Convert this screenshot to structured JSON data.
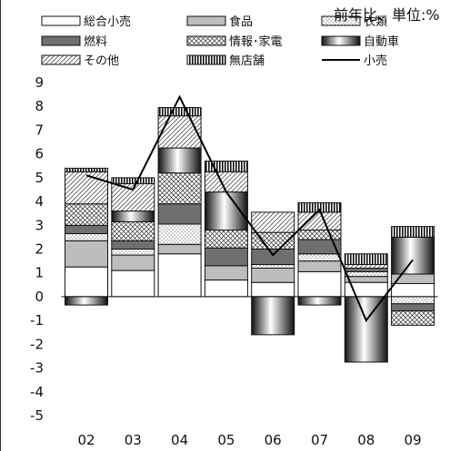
{
  "chart_data": {
    "type": "bar",
    "stacked": true,
    "unit_label": "前年比、単位:%",
    "categories": [
      "02",
      "03",
      "04",
      "05",
      "06",
      "07",
      "08",
      "09"
    ],
    "ylim": [
      -5,
      9
    ],
    "yticks": [
      9,
      8,
      7,
      6,
      5,
      4,
      3,
      2,
      1,
      0,
      -1,
      -2,
      -3,
      -4,
      -5
    ],
    "grid": false,
    "legend_position": "top",
    "series": [
      {
        "name": "総合小売",
        "pattern": "white",
        "values": [
          1.25,
          1.1,
          1.8,
          0.7,
          0.6,
          1.05,
          0.6,
          0.55
        ]
      },
      {
        "name": "食品",
        "pattern": "gray",
        "values": [
          1.1,
          0.65,
          0.4,
          0.6,
          0.6,
          0.45,
          0.25,
          0.4
        ]
      },
      {
        "name": "衣類",
        "pattern": "dots",
        "values": [
          0.3,
          0.25,
          0.85,
          0.0,
          0.15,
          0.3,
          0.2,
          -0.3
        ]
      },
      {
        "name": "燃料",
        "pattern": "dark",
        "values": [
          0.35,
          0.35,
          0.85,
          0.75,
          0.65,
          0.6,
          0.15,
          -0.3
        ]
      },
      {
        "name": "情報･家電",
        "pattern": "cross",
        "values": [
          0.9,
          0.8,
          1.3,
          0.75,
          0.7,
          0.4,
          0.0,
          -0.6
        ]
      },
      {
        "name": "自動車",
        "pattern": "cylinder",
        "values": [
          -0.35,
          0.45,
          1.05,
          1.6,
          -1.6,
          -0.35,
          -2.75,
          1.55
        ]
      },
      {
        "name": "その他",
        "pattern": "hatch",
        "values": [
          1.35,
          1.15,
          1.35,
          0.85,
          0.85,
          0.75,
          0.15,
          0.0
        ]
      },
      {
        "name": "無店舗",
        "pattern": "vlines",
        "values": [
          0.15,
          0.25,
          0.35,
          0.45,
          0.0,
          0.4,
          0.45,
          0.45
        ]
      },
      {
        "name": "小売",
        "type": "line",
        "values": [
          5.1,
          4.5,
          8.4,
          4.4,
          1.75,
          3.65,
          -1.0,
          1.55
        ]
      }
    ]
  }
}
